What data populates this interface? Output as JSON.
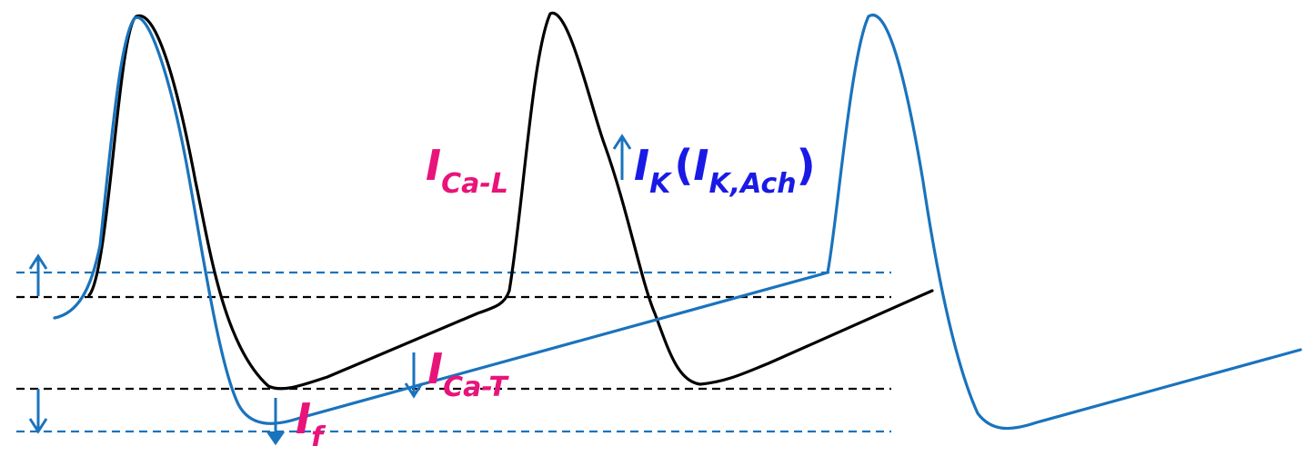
{
  "colors": {
    "blue_trace": "#1a73bd",
    "black_trace": "#000000",
    "magenta_label": "#e8147a",
    "blue_label": "#1a1ae6"
  },
  "labels": {
    "ica_l": {
      "main": "I",
      "sub": "Ca-L"
    },
    "ik": {
      "main": "I",
      "sub": "K",
      "open_paren": "(",
      "inner_main": "I",
      "inner_sub": "K,Ach",
      "close_paren": ")"
    },
    "ica_t": {
      "main": "I",
      "sub": "Ca-T"
    },
    "if": {
      "main": "I",
      "sub": "f"
    }
  }
}
